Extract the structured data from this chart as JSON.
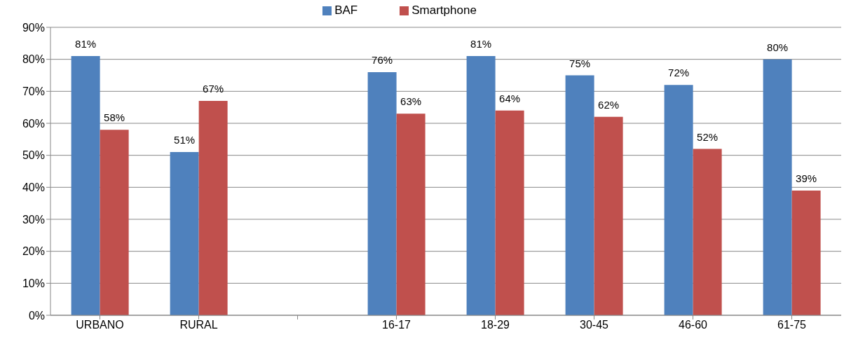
{
  "chart_data": {
    "type": "bar",
    "categories": [
      "URBANO",
      "RURAL",
      null,
      "16-17",
      "18-29",
      "30-45",
      "46-60",
      "61-75"
    ],
    "series": [
      {
        "name": "BAF",
        "color": "#4f81bd",
        "values": [
          81,
          51,
          null,
          76,
          81,
          75,
          72,
          80
        ],
        "value_labels": [
          "81%",
          "51%",
          null,
          "76%",
          "81%",
          "75%",
          "72%",
          "80%"
        ]
      },
      {
        "name": "Smartphone",
        "color": "#c0504d",
        "values": [
          58,
          67,
          null,
          63,
          64,
          62,
          52,
          39
        ],
        "value_labels": [
          "58%",
          "67%",
          null,
          "63%",
          "64%",
          "62%",
          "52%",
          "39%"
        ]
      }
    ],
    "ylim": [
      0,
      90
    ],
    "yticks": [
      {
        "value": 0,
        "label": "0%"
      },
      {
        "value": 10,
        "label": "10%"
      },
      {
        "value": 20,
        "label": "20%"
      },
      {
        "value": 30,
        "label": "30%"
      },
      {
        "value": 40,
        "label": "40%"
      },
      {
        "value": 50,
        "label": "50%"
      },
      {
        "value": 60,
        "label": "60%"
      },
      {
        "value": 70,
        "label": "70%"
      },
      {
        "value": 80,
        "label": "80%"
      },
      {
        "value": 90,
        "label": "90%"
      }
    ],
    "grid": "y",
    "legend": "top"
  }
}
